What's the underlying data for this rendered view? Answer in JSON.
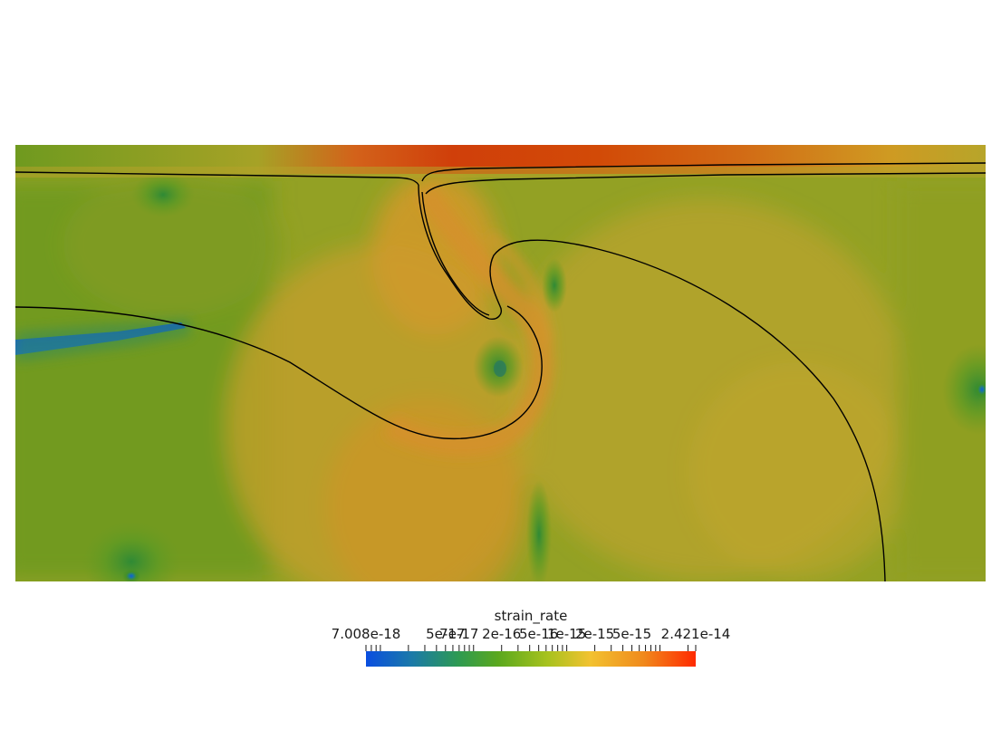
{
  "colorbar": {
    "title": "strain_rate",
    "min_label": "7.008e-18",
    "max_label": "2.421e-14",
    "mid_labels": [
      "5e-17",
      "7e-17",
      "2e-16",
      "5e-16",
      "1e-15",
      "2e-15",
      "5e-15"
    ],
    "scale": "log",
    "colormap": [
      "#0a4ee0",
      "#1b7aa8",
      "#2e9a52",
      "#5aa81e",
      "#a7c21e",
      "#f2c230",
      "#f08a1c",
      "#ff2a00"
    ]
  },
  "field_colors": {
    "background": "#93a124",
    "low": "#0a4ee0",
    "mid_low": "#3f8f26",
    "mid": "#b3a529",
    "mid_high": "#cf9624",
    "high": "#d24a07"
  }
}
